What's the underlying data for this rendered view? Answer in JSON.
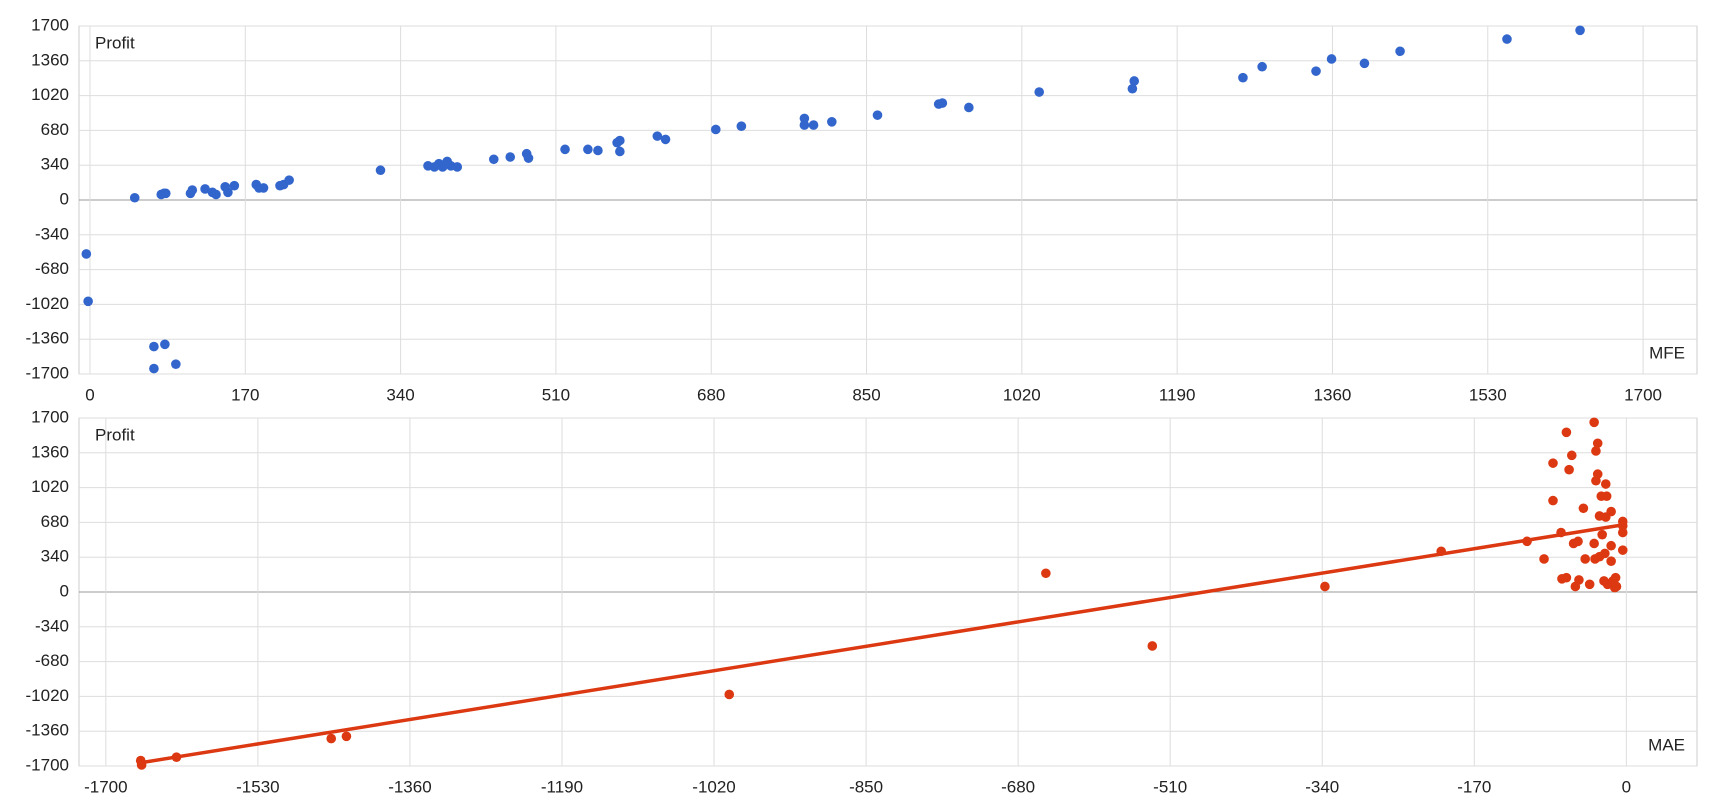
{
  "chart_data": [
    {
      "type": "scatter",
      "ylabel": "Profit",
      "xlabel": "MFE",
      "color": "#3366cc",
      "x": [
        -4,
        -2,
        49,
        78,
        81,
        83,
        70,
        82,
        70,
        94,
        110,
        112,
        126,
        134,
        138,
        148,
        151,
        158,
        182,
        185,
        190,
        208,
        212,
        218,
        318,
        370,
        377,
        382,
        386,
        391,
        395,
        402,
        442,
        460,
        478,
        480,
        520,
        545,
        556,
        577,
        580,
        580,
        621,
        630,
        685,
        713,
        782,
        782,
        792,
        812,
        862,
        929,
        933,
        962,
        1039,
        1141,
        1143,
        1262,
        1283,
        1342,
        1359,
        1395,
        1434,
        1551,
        1631
      ],
      "values": [
        -527,
        -990,
        22,
        54,
        65,
        65,
        -1432,
        -1410,
        -1647,
        -1604,
        65,
        97,
        108,
        75,
        54,
        129,
        75,
        140,
        151,
        118,
        118,
        140,
        151,
        194,
        291,
        334,
        323,
        355,
        323,
        377,
        334,
        323,
        398,
        420,
        452,
        409,
        495,
        495,
        484,
        560,
        581,
        474,
        624,
        592,
        689,
        721,
        797,
        732,
        732,
        764,
        829,
        937,
        947,
        904,
        1055,
        1087,
        1163,
        1195,
        1302,
        1259,
        1378,
        1335,
        1453,
        1572,
        1658
      ],
      "xlim": [
        -12,
        1759
      ],
      "ylim": [
        -1700,
        1700
      ],
      "xticks": [
        0,
        170,
        340,
        510,
        680,
        850,
        1020,
        1190,
        1360,
        1530,
        1700
      ],
      "yticks": [
        -1700,
        -1360,
        -1020,
        -680,
        -340,
        0,
        340,
        680,
        1020,
        1360,
        1700
      ],
      "grid": true
    },
    {
      "type": "scatter",
      "ylabel": "Profit",
      "xlabel": "MAE",
      "color": "#dc3912",
      "x": [
        -1661,
        -1660,
        -1621,
        -1448,
        -1431,
        -1003,
        -649,
        -530,
        -337,
        -207,
        -111,
        -92,
        -82,
        -82,
        -73,
        -72,
        -67,
        -67,
        -64,
        -61,
        -59,
        -57,
        -54,
        -53,
        -48,
        -46,
        -41,
        -36,
        -36,
        -35,
        -34,
        -34,
        -32,
        -32,
        -30,
        -30,
        -28,
        -27,
        -25,
        -24,
        -23,
        -23,
        -22,
        -21,
        -17,
        -17,
        -17,
        -15,
        -13,
        -12,
        -11,
        -4,
        -4,
        -4,
        -4
      ],
      "values": [
        -1647,
        -1690,
        -1614,
        -1432,
        -1410,
        -1001,
        183,
        -527,
        54,
        398,
        495,
        323,
        1259,
        893,
        581,
        129,
        140,
        1560,
        1195,
        1335,
        474,
        54,
        495,
        118,
        818,
        323,
        75,
        1658,
        474,
        323,
        1378,
        1087,
        1453,
        1152,
        743,
        345,
        936,
        560,
        108,
        377,
        732,
        1055,
        936,
        75,
        301,
        452,
        786,
        108,
        43,
        140,
        54,
        689,
        409,
        581,
        646
      ],
      "trendline": {
        "x": [
          -1661,
          -4
        ],
        "values": [
          -1668,
          656
        ]
      },
      "xlim": [
        -1730,
        79
      ],
      "ylim": [
        -1700,
        1700
      ],
      "xticks": [
        -1700,
        -1530,
        -1360,
        -1190,
        -1020,
        -850,
        -680,
        -510,
        -340,
        -170,
        0
      ],
      "yticks": [
        -1700,
        -1360,
        -1020,
        -680,
        -340,
        0,
        340,
        680,
        1020,
        1360,
        1700
      ],
      "grid": true
    }
  ]
}
